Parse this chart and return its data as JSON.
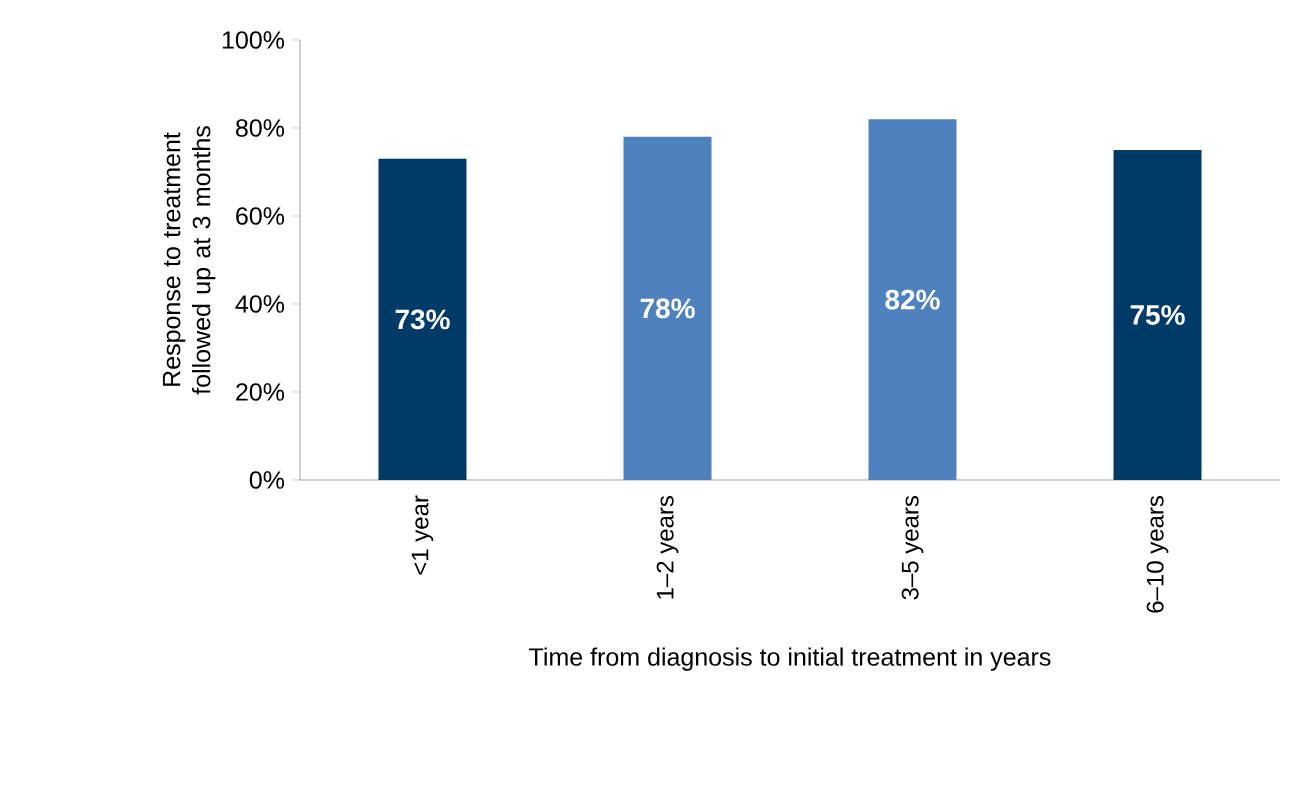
{
  "chart_data": {
    "type": "bar",
    "xlabel": "Time from diagnosis to initial treatment in years",
    "ylabel": "Response to treatment followed up at 3 months",
    "categories": [
      "<1 year",
      "1–2 years",
      "3–5 years",
      "6–10 years"
    ],
    "values": [
      73,
      78,
      82,
      75
    ],
    "value_labels": [
      "73%",
      "78%",
      "82%",
      "75%"
    ],
    "colors": [
      "#003a66",
      "#4f81bd",
      "#4f81bd",
      "#003a66"
    ],
    "ylim": [
      0,
      100
    ],
    "yticks": [
      {
        "value": 0,
        "label": "0%"
      },
      {
        "value": 20,
        "label": "20%"
      },
      {
        "value": 40,
        "label": "40%"
      },
      {
        "value": 60,
        "label": "60%"
      },
      {
        "value": 80,
        "label": "80%"
      },
      {
        "value": 100,
        "label": "100%"
      }
    ],
    "grid": false
  }
}
